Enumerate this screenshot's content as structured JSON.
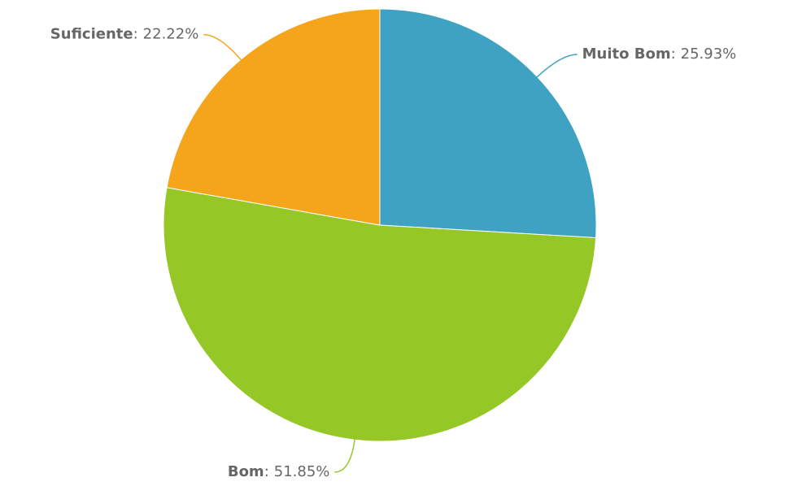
{
  "chart_data": {
    "type": "pie",
    "categories": [
      "Muito Bom",
      "Bom",
      "Suficiente"
    ],
    "values": [
      25.93,
      51.85,
      22.22
    ],
    "value_labels": [
      "25.93%",
      "51.85%",
      "22.22%"
    ],
    "label_separator": ":",
    "colors": [
      "#3fa2c2",
      "#95c826",
      "#f5a51b"
    ]
  }
}
